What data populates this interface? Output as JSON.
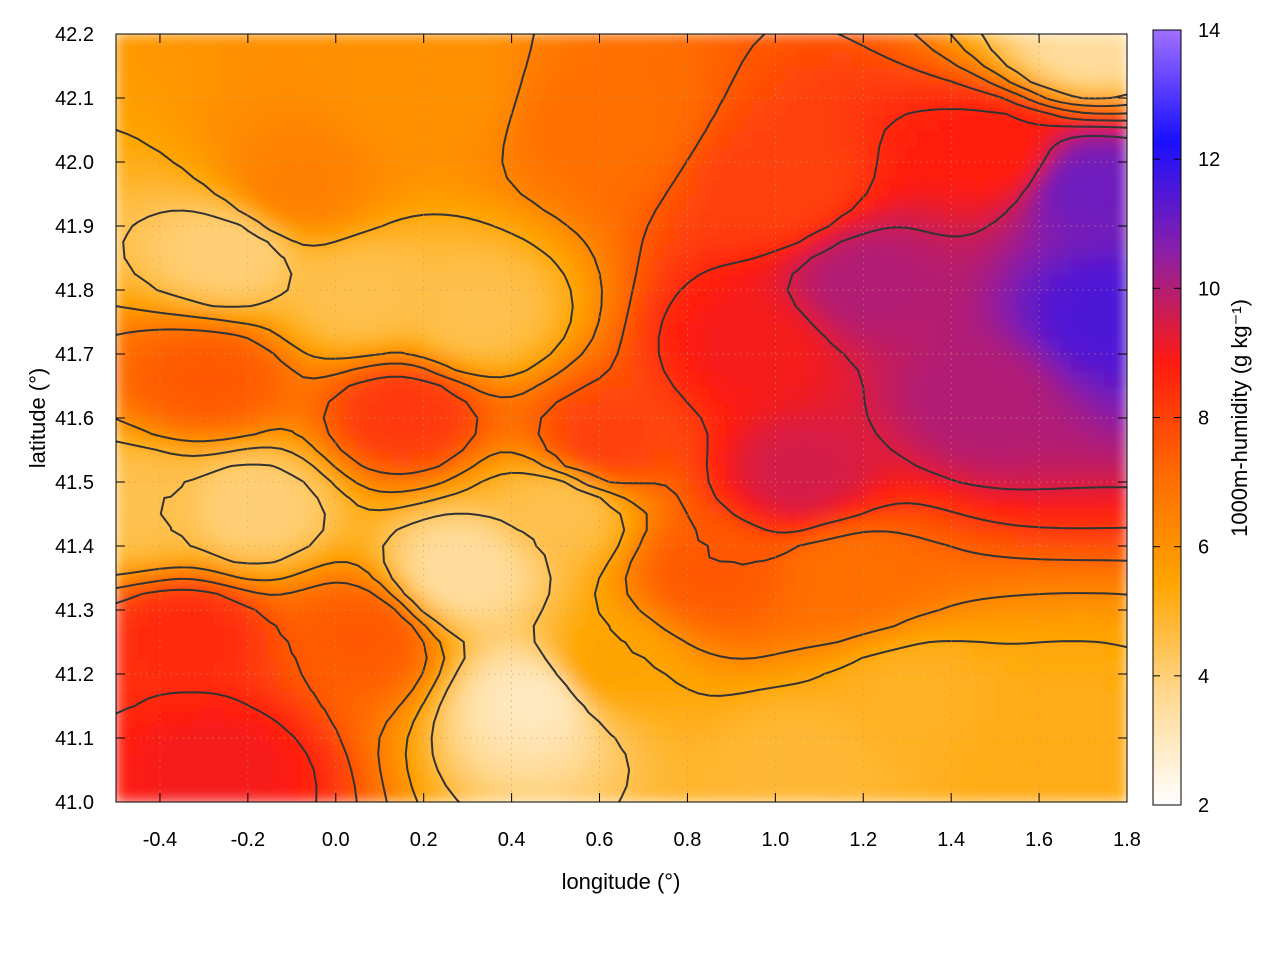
{
  "chart_data": {
    "type": "heatmap",
    "xlabel": "longitude (°)",
    "ylabel": "latitude (°)",
    "colorbar_label": "1000m-humidity (g kg⁻¹)",
    "xlim": [
      -0.5,
      1.8
    ],
    "ylim": [
      41.0,
      42.2
    ],
    "clim": [
      2,
      14
    ],
    "x_ticks": [
      -0.4,
      -0.2,
      0.0,
      0.2,
      0.4,
      0.6,
      0.8,
      1.0,
      1.2,
      1.4,
      1.6,
      1.8
    ],
    "x_tick_labels": [
      "-0.4",
      "-0.2",
      "0.0",
      "0.2",
      "0.4",
      "0.6",
      "0.8",
      "1.0",
      "1.2",
      "1.4",
      "1.6",
      "1.8"
    ],
    "y_ticks": [
      41.0,
      41.1,
      41.2,
      41.3,
      41.4,
      41.5,
      41.6,
      41.7,
      41.8,
      41.9,
      42.0,
      42.1,
      42.2
    ],
    "y_tick_labels": [
      "41.0",
      "41.1",
      "41.2",
      "41.3",
      "41.4",
      "41.5",
      "41.6",
      "41.7",
      "41.8",
      "41.9",
      "42.0",
      "42.1",
      "42.2"
    ],
    "colorbar_ticks": [
      2,
      4,
      6,
      8,
      10,
      12,
      14
    ],
    "colorbar_tick_labels": [
      "2",
      "4",
      "6",
      "8",
      "10",
      "12",
      "14"
    ],
    "colormap": [
      "#ffffff",
      "#ffd890",
      "#ffa500",
      "#ff6a00",
      "#ff1a10",
      "#8b1fa8",
      "#1a10ff",
      "#a070ff"
    ],
    "grid": true,
    "contour_color": "#333333",
    "humidity_features": [
      {
        "x": -0.25,
        "y": 41.85,
        "value": 4.0
      },
      {
        "x": 0.05,
        "y": 41.78,
        "value": 4.5
      },
      {
        "x": 0.3,
        "y": 41.75,
        "value": 4.5
      },
      {
        "x": -0.2,
        "y": 41.45,
        "value": 4.0
      },
      {
        "x": -0.45,
        "y": 41.45,
        "value": 4.5
      },
      {
        "x": 0.28,
        "y": 41.35,
        "value": 3.5
      },
      {
        "x": 0.45,
        "y": 41.15,
        "value": 3.0
      },
      {
        "x": 0.5,
        "y": 41.45,
        "value": 4.5
      },
      {
        "x": 1.3,
        "y": 41.15,
        "value": 5.0
      },
      {
        "x": 1.65,
        "y": 41.1,
        "value": 5.2
      },
      {
        "x": 1.05,
        "y": 41.05,
        "value": 4.8
      },
      {
        "x": 1.7,
        "y": 42.18,
        "value": 3.5
      },
      {
        "x": -0.1,
        "y": 41.95,
        "value": 6.5
      },
      {
        "x": -0.3,
        "y": 41.65,
        "value": 7.5
      },
      {
        "x": 0.15,
        "y": 41.6,
        "value": 8.2
      },
      {
        "x": -0.35,
        "y": 41.25,
        "value": 8.5
      },
      {
        "x": -0.28,
        "y": 41.05,
        "value": 9.0
      },
      {
        "x": 0.05,
        "y": 41.25,
        "value": 7.5
      },
      {
        "x": 0.6,
        "y": 41.55,
        "value": 8.0
      },
      {
        "x": 0.95,
        "y": 41.7,
        "value": 9.0
      },
      {
        "x": 1.05,
        "y": 41.5,
        "value": 9.5
      },
      {
        "x": 1.2,
        "y": 41.8,
        "value": 10.0
      },
      {
        "x": 1.45,
        "y": 41.62,
        "value": 10.0
      },
      {
        "x": 1.75,
        "y": 41.75,
        "value": 11.5
      },
      {
        "x": 1.7,
        "y": 41.95,
        "value": 11.0
      },
      {
        "x": 1.5,
        "y": 42.0,
        "value": 8.8
      },
      {
        "x": 1.0,
        "y": 41.95,
        "value": 8.0
      },
      {
        "x": 0.6,
        "y": 42.05,
        "value": 7.0
      },
      {
        "x": 0.85,
        "y": 41.35,
        "value": 7.5
      },
      {
        "x": 0.2,
        "y": 42.1,
        "value": 6.0
      },
      {
        "x": 0.6,
        "y": 41.2,
        "value": 5.5
      },
      {
        "x": 1.15,
        "y": 41.35,
        "value": 7.0
      }
    ]
  }
}
